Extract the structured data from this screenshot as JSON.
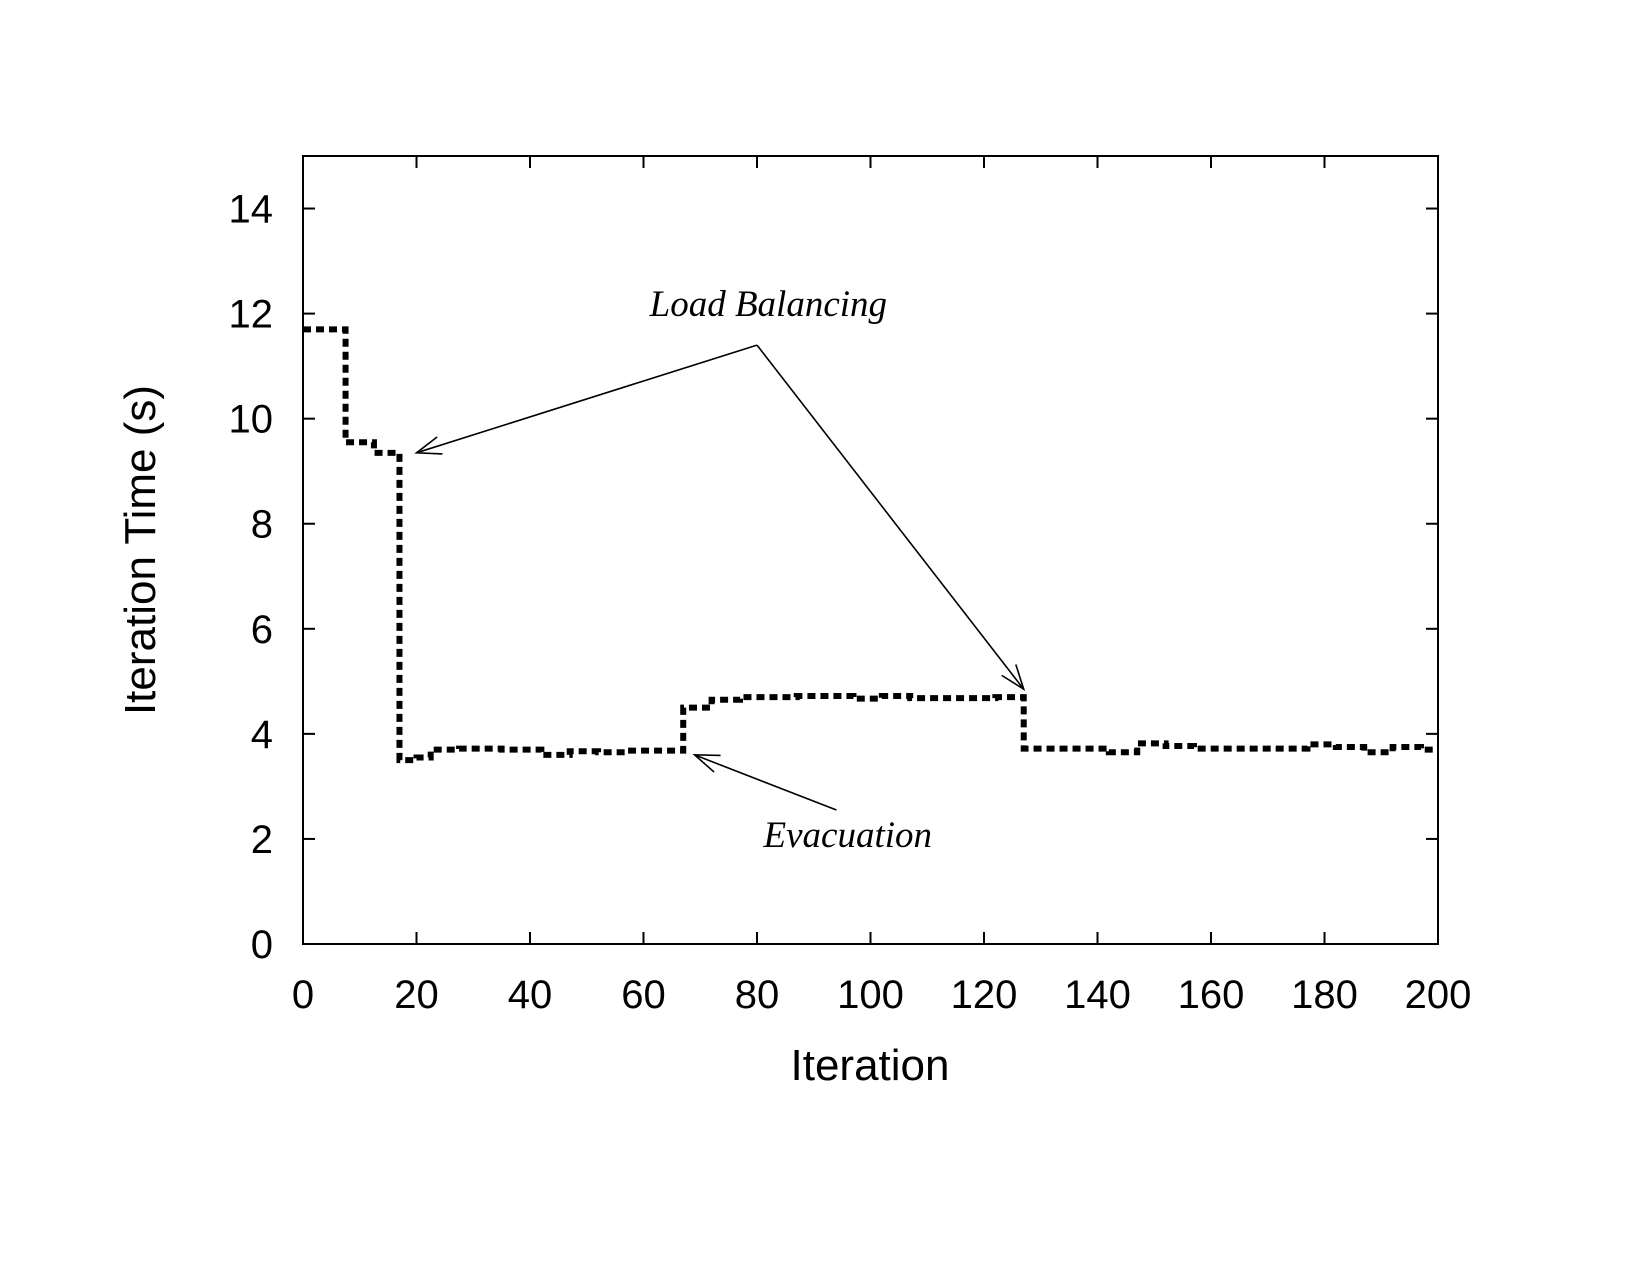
{
  "chart_data": {
    "type": "line",
    "style": "step",
    "title": "",
    "xlabel": "Iteration",
    "ylabel": "Iteration Time (s)",
    "xlim": [
      0,
      200
    ],
    "ylim": [
      0,
      15
    ],
    "xticks": [
      0,
      20,
      40,
      60,
      80,
      100,
      120,
      140,
      160,
      180,
      200
    ],
    "yticks": [
      0,
      2,
      4,
      6,
      8,
      10,
      12,
      14
    ],
    "grid": false,
    "series": [
      {
        "name": "Iteration time",
        "step_edges": [
          0,
          7.5,
          12.5,
          17,
          20,
          22.5,
          27.5,
          35,
          42,
          47,
          52,
          57,
          67,
          72,
          77,
          87,
          97,
          102,
          107,
          122,
          127,
          142,
          147,
          152,
          157,
          177,
          182,
          187,
          192,
          197,
          200
        ],
        "values": [
          11.7,
          9.55,
          9.35,
          3.5,
          3.55,
          3.7,
          3.72,
          3.7,
          3.6,
          3.67,
          3.65,
          3.68,
          4.5,
          4.65,
          4.7,
          4.72,
          4.67,
          4.72,
          4.68,
          4.7,
          3.72,
          3.65,
          3.82,
          3.77,
          3.72,
          3.8,
          3.75,
          3.65,
          3.75,
          3.7
        ]
      }
    ],
    "annotations": [
      {
        "text": "Load Balancing",
        "text_at": [
          82,
          11.95
        ],
        "from": [
          80,
          11.4
        ],
        "arrows_to": [
          [
            20,
            9.35
          ],
          [
            127,
            4.85
          ]
        ]
      },
      {
        "text": "Evacuation",
        "text_at": [
          96,
          1.85
        ],
        "from": [
          94,
          2.55
        ],
        "arrows_to": [
          [
            69,
            3.6
          ]
        ]
      }
    ]
  }
}
